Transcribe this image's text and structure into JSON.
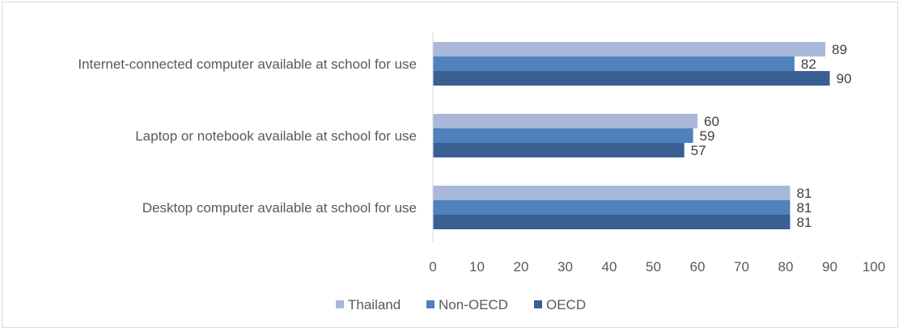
{
  "chart_data": {
    "type": "bar",
    "orientation": "horizontal",
    "categories": [
      "Internet-connected computer available at school for use",
      "Laptop or notebook available at school for use",
      "Desktop computer available at school for use"
    ],
    "series": [
      {
        "name": "Thailand",
        "values": [
          89,
          60,
          81
        ],
        "color": "#a9b8d9"
      },
      {
        "name": "Non-OECD",
        "values": [
          82,
          59,
          81
        ],
        "color": "#4f81bd"
      },
      {
        "name": "OECD",
        "values": [
          90,
          57,
          81
        ],
        "color": "#3a5f93"
      }
    ],
    "xlim": [
      0,
      100
    ],
    "xticks": [
      "0",
      "10",
      "20",
      "30",
      "40",
      "50",
      "60",
      "70",
      "80",
      "90",
      "100"
    ],
    "grid": false,
    "data_labels": true,
    "legend_position": "bottom"
  }
}
